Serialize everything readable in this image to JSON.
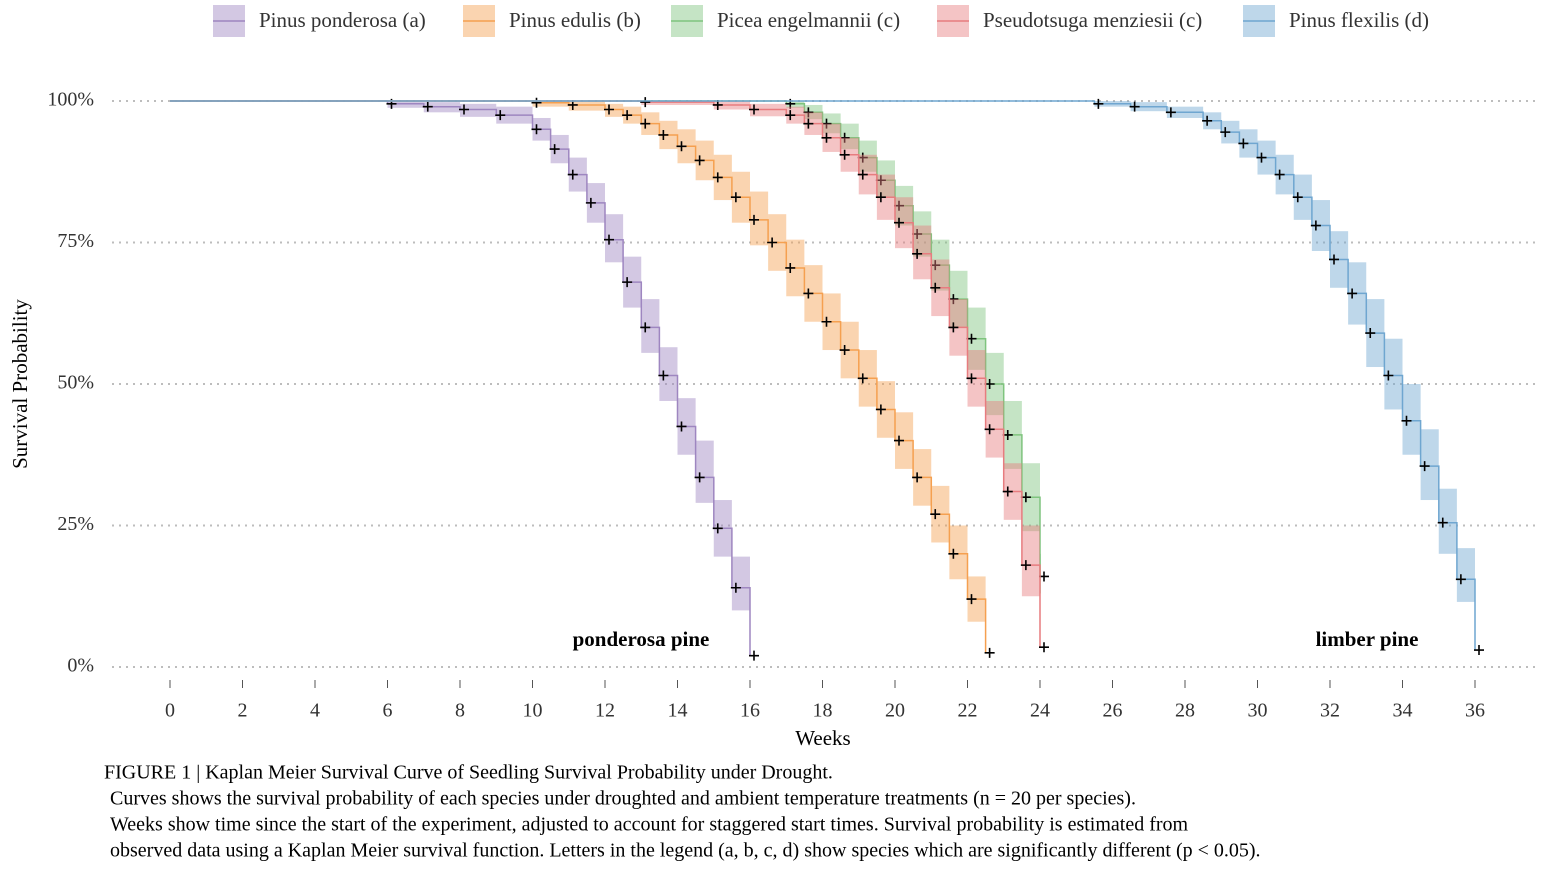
{
  "chart_data": {
    "type": "km-step",
    "xlabel": "Weeks",
    "ylabel": "Survival Probability",
    "xlim": [
      0,
      36
    ],
    "ylim": [
      0,
      100
    ],
    "xticks": [
      0,
      2,
      4,
      6,
      8,
      10,
      12,
      14,
      16,
      18,
      20,
      22,
      24,
      26,
      28,
      30,
      32,
      34,
      36
    ],
    "yticks": [
      {
        "value": 0,
        "label": "0%"
      },
      {
        "value": 25,
        "label": "25%"
      },
      {
        "value": 50,
        "label": "50%"
      },
      {
        "value": 75,
        "label": "75%"
      },
      {
        "value": 100,
        "label": "100%"
      }
    ],
    "grid": true,
    "legend": "top",
    "series": [
      {
        "name": "Pinus ponderosa (a)",
        "color": "#9e86c0",
        "x": [
          0,
          6,
          7,
          8,
          9,
          10,
          10.5,
          11,
          11.5,
          12,
          12.5,
          13,
          13.5,
          14,
          14.5,
          15,
          15.5,
          16
        ],
        "values": [
          100,
          99.5,
          99,
          98.5,
          97.5,
          95,
          91.5,
          87,
          82,
          75.5,
          68,
          60,
          51.5,
          42.5,
          33.5,
          24.5,
          14,
          2
        ],
        "lower": [
          100,
          98.8,
          98,
          97.2,
          96,
          93,
          89,
          84,
          78.5,
          71.5,
          63.5,
          55.5,
          47,
          37.5,
          29,
          19.5,
          10,
          2
        ],
        "upper": [
          100,
          100,
          99.8,
          99.5,
          99,
          97,
          94,
          90,
          85.5,
          80,
          72.5,
          65,
          56.5,
          47.5,
          40,
          29.5,
          19.5,
          2
        ]
      },
      {
        "name": "Pinus edulis (b)",
        "color": "#f5a050",
        "x": [
          0,
          10,
          11,
          12,
          12.5,
          13,
          13.5,
          14,
          14.5,
          15,
          15.5,
          16,
          16.5,
          17,
          17.5,
          18,
          18.5,
          19,
          19.5,
          20,
          20.5,
          21,
          21.5,
          22,
          22.5
        ],
        "values": [
          100,
          99.7,
          99.3,
          98.5,
          97.5,
          96,
          94,
          92,
          89.5,
          86.5,
          83,
          79,
          75,
          70.5,
          66,
          61,
          56,
          51,
          45.5,
          40,
          33.5,
          27,
          20,
          12,
          2.5
        ],
        "lower": [
          100,
          99,
          98.3,
          97.2,
          96,
          94,
          91.5,
          89,
          86,
          82.5,
          78.5,
          74.5,
          70,
          65.5,
          61,
          56,
          51,
          46,
          40.5,
          35,
          28.5,
          22,
          15.5,
          8,
          2.5
        ],
        "upper": [
          100,
          100,
          100,
          99.5,
          99,
          98,
          96.5,
          95,
          93,
          90.5,
          87.5,
          84,
          80,
          75.5,
          71,
          66,
          61,
          56,
          50.5,
          45,
          38.5,
          32,
          25,
          16,
          2.5
        ]
      },
      {
        "name": "Picea engelmannii (c)",
        "color": "#7fc47e",
        "x": [
          0,
          17,
          17.5,
          18,
          18.5,
          19,
          19.5,
          20,
          20.5,
          21,
          21.5,
          22,
          22.5,
          23,
          23.5,
          24
        ],
        "values": [
          100,
          99.5,
          98,
          96,
          93.5,
          90,
          86,
          81.5,
          76.5,
          71,
          65,
          58,
          50,
          41,
          30,
          16
        ],
        "lower": [
          100,
          98.8,
          96.8,
          94.3,
          91.5,
          87.5,
          83,
          78,
          72.5,
          66.5,
          60,
          52.5,
          44.5,
          35,
          24,
          13
        ],
        "upper": [
          100,
          100,
          99.3,
          97.8,
          96,
          93,
          89.5,
          85,
          80.5,
          75.5,
          70,
          63.5,
          55.5,
          47,
          36,
          20
        ]
      },
      {
        "name": "Pseudotsuga menziesii (c)",
        "color": "#e77c7f",
        "x": [
          0,
          13,
          15,
          16,
          17,
          17.5,
          18,
          18.5,
          19,
          19.5,
          20,
          20.5,
          21,
          21.5,
          22,
          22.5,
          23,
          23.5,
          24
        ],
        "values": [
          100,
          99.8,
          99.3,
          98.5,
          97.5,
          96,
          93.5,
          90.5,
          87,
          83,
          78.5,
          73,
          67,
          60,
          51,
          42,
          31,
          18,
          3.5
        ],
        "lower": [
          100,
          99.3,
          98.5,
          97.3,
          96,
          94,
          91,
          87.5,
          83.5,
          79,
          74,
          68.5,
          62,
          55,
          46,
          37,
          26,
          12.5,
          3.5
        ],
        "upper": [
          100,
          100,
          100,
          99.5,
          99,
          98,
          96,
          93.5,
          90.5,
          87,
          83,
          78,
          72,
          65,
          56,
          47,
          36,
          25,
          3.5
        ]
      },
      {
        "name": "Pinus flexilis (d)",
        "color": "#6fa6d0",
        "x": [
          0,
          25.5,
          26.5,
          27.5,
          28.5,
          29,
          29.5,
          30,
          30.5,
          31,
          31.5,
          32,
          32.5,
          33,
          33.5,
          34,
          34.5,
          35,
          35.5,
          36
        ],
        "values": [
          100,
          99.5,
          99,
          98,
          96.5,
          94.5,
          92.5,
          90,
          87,
          83,
          78,
          72,
          66,
          59,
          51.5,
          43.5,
          35.5,
          25.5,
          15.5,
          3
        ],
        "lower": [
          100,
          99,
          98.2,
          97,
          95,
          92.5,
          90,
          87,
          83.5,
          79,
          73.5,
          67,
          60.5,
          53,
          45.5,
          37.5,
          29.5,
          20,
          11.5,
          3
        ],
        "upper": [
          100,
          100,
          99.8,
          99,
          98,
          96.5,
          95,
          93,
          90.5,
          87,
          82.5,
          77,
          71.5,
          65,
          58,
          50,
          42,
          31.5,
          21,
          3
        ]
      }
    ],
    "annotations": [
      "ponderosa pine",
      "limber pine"
    ],
    "caption": [
      "FIGURE 1 | Kaplan Meier Survival Curve of Seedling Survival Probability under Drought.",
      "Curves shows the survival probability of each species under droughted and ambient temperature treatments (n = 20 per species).",
      "Weeks show time since the start of the experiment, adjusted to account for staggered start times. Survival probability is estimated from",
      "observed data using a Kaplan Meier survival function. Letters in the legend (a, b, c, d) show species which are significantly different (p < 0.05)."
    ]
  }
}
